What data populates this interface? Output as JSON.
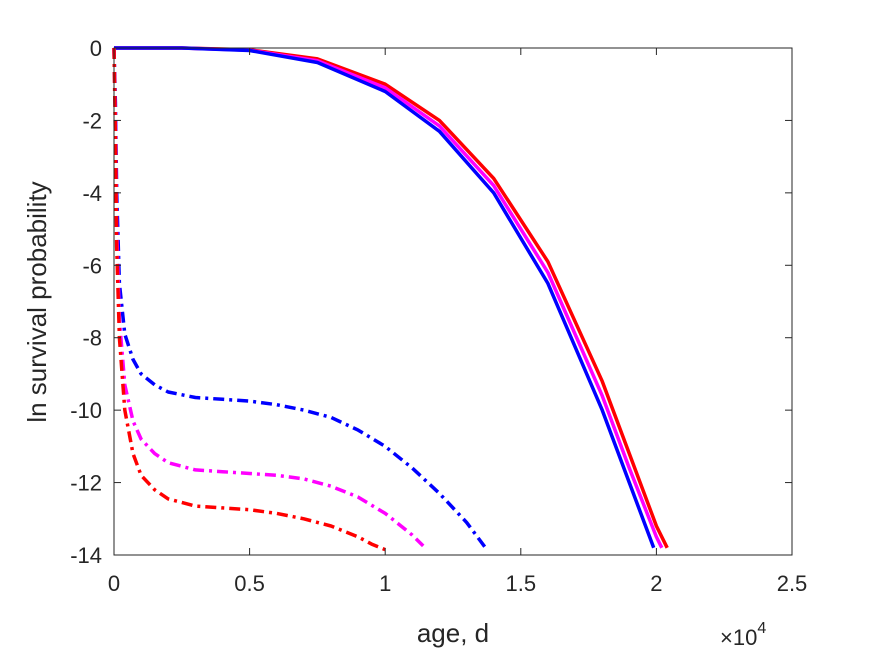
{
  "chart_data": {
    "type": "line",
    "title": "",
    "xlabel": "age, d",
    "ylabel": "ln survival probability",
    "x_exponent_label": {
      "base": "×10",
      "exponent": "4"
    },
    "xlim": [
      0,
      25000
    ],
    "ylim": [
      -14,
      0
    ],
    "xticks": [
      0,
      5000,
      10000,
      15000,
      20000,
      25000
    ],
    "xtick_labels": [
      "0",
      "0.5",
      "1",
      "1.5",
      "2",
      "2.5"
    ],
    "yticks": [
      0,
      -2,
      -4,
      -6,
      -8,
      -10,
      -12,
      -14
    ],
    "ytick_labels": [
      "0",
      "-2",
      "-4",
      "-6",
      "-8",
      "-10",
      "-12",
      "-14"
    ],
    "grid": false,
    "legend": "none",
    "series": [
      {
        "color": "#ff0000",
        "style": "solid",
        "x": [
          0,
          2500,
          5000,
          7500,
          10000,
          12000,
          14000,
          16000,
          18000,
          19000,
          20000,
          20400
        ],
        "y": [
          0,
          0,
          -0.05,
          -0.3,
          -1.0,
          -2.0,
          -3.6,
          -5.9,
          -9.2,
          -11.2,
          -13.2,
          -13.8
        ]
      },
      {
        "color": "#ff00ff",
        "style": "solid",
        "x": [
          0,
          2500,
          5000,
          7500,
          10000,
          12000,
          14000,
          16000,
          18000,
          19000,
          20000,
          20200
        ],
        "y": [
          0,
          0,
          -0.06,
          -0.35,
          -1.1,
          -2.15,
          -3.8,
          -6.2,
          -9.6,
          -11.6,
          -13.5,
          -13.8
        ]
      },
      {
        "color": "#0000ff",
        "style": "solid",
        "x": [
          0,
          2500,
          5000,
          7500,
          10000,
          12000,
          14000,
          16000,
          18000,
          19000,
          19900
        ],
        "y": [
          0,
          0,
          -0.07,
          -0.4,
          -1.2,
          -2.3,
          -4.0,
          -6.5,
          -10.0,
          -12.0,
          -13.8
        ]
      },
      {
        "color": "#0000ff",
        "style": "dashdot",
        "x": [
          0,
          50,
          100,
          200,
          400,
          700,
          1000,
          1500,
          2000,
          3000,
          4000,
          5000,
          6000,
          7000,
          8000,
          9000,
          10000,
          11000,
          12000,
          13000,
          13700
        ],
        "y": [
          0,
          -1.5,
          -4.0,
          -6.5,
          -7.9,
          -8.6,
          -9.0,
          -9.3,
          -9.5,
          -9.65,
          -9.7,
          -9.75,
          -9.85,
          -10.0,
          -10.2,
          -10.55,
          -11.0,
          -11.6,
          -12.3,
          -13.1,
          -13.8
        ]
      },
      {
        "color": "#ff00ff",
        "style": "dashdot",
        "x": [
          0,
          50,
          100,
          200,
          400,
          700,
          1000,
          1500,
          2000,
          3000,
          4000,
          5000,
          6000,
          7000,
          8000,
          9000,
          10000,
          10500,
          11000,
          11400
        ],
        "y": [
          0,
          -2.0,
          -5.0,
          -7.5,
          -9.3,
          -10.3,
          -10.8,
          -11.2,
          -11.45,
          -11.65,
          -11.7,
          -11.75,
          -11.8,
          -11.9,
          -12.1,
          -12.4,
          -12.85,
          -13.15,
          -13.45,
          -13.75
        ]
      },
      {
        "color": "#ff0000",
        "style": "dashdot",
        "x": [
          0,
          50,
          100,
          200,
          400,
          700,
          1000,
          1500,
          2000,
          3000,
          4000,
          5000,
          6000,
          7000,
          8000,
          9000,
          9500,
          10000
        ],
        "y": [
          0,
          -2.5,
          -5.5,
          -8.0,
          -10.0,
          -11.2,
          -11.8,
          -12.2,
          -12.45,
          -12.65,
          -12.7,
          -12.75,
          -12.85,
          -13.0,
          -13.2,
          -13.5,
          -13.7,
          -13.85
        ]
      }
    ]
  }
}
